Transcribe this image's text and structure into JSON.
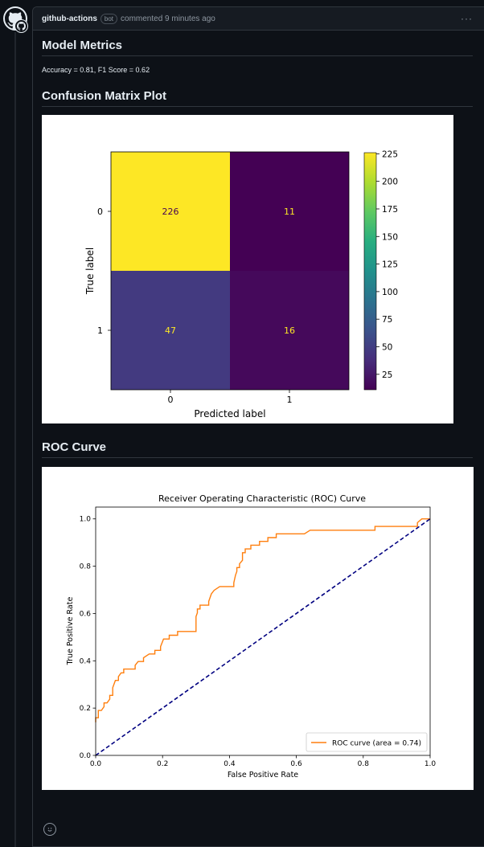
{
  "comment": {
    "author": "github-actions",
    "badge": "bot",
    "action": "commented 9 minutes ago",
    "menu_label": "···"
  },
  "sections": {
    "metrics_title": "Model Metrics",
    "metrics_text": "Accuracy = 0.81, F1 Score = 0.62",
    "cm_title": "Confusion Matrix Plot",
    "roc_title": "ROC Curve"
  },
  "chart_data": [
    {
      "type": "heatmap",
      "title": "",
      "xlabel": "Predicted label",
      "ylabel": "True label",
      "x_categories": [
        "0",
        "1"
      ],
      "y_categories": [
        "0",
        "1"
      ],
      "values": [
        [
          226,
          11
        ],
        [
          47,
          16
        ]
      ],
      "colorbar": {
        "min": 11,
        "max": 226,
        "ticks": [
          25,
          50,
          75,
          100,
          125,
          150,
          175,
          200,
          225
        ]
      },
      "colormap": "viridis"
    },
    {
      "type": "line",
      "title": "Receiver Operating Characteristic (ROC) Curve",
      "xlabel": "False Positive Rate",
      "ylabel": "True Positive Rate",
      "xlim": [
        0,
        1
      ],
      "ylim": [
        0,
        1.05
      ],
      "xticks": [
        0.0,
        0.2,
        0.4,
        0.6,
        0.8,
        1.0
      ],
      "yticks": [
        0.0,
        0.2,
        0.4,
        0.6,
        0.8,
        1.0
      ],
      "legend_position": "lower-right",
      "series": [
        {
          "name": "ROC curve (area = 0.74)",
          "color": "#ff7f0e",
          "style": "solid",
          "x": [
            0.0,
            0.0,
            0.008,
            0.008,
            0.017,
            0.025,
            0.025,
            0.034,
            0.042,
            0.042,
            0.051,
            0.051,
            0.059,
            0.068,
            0.068,
            0.076,
            0.084,
            0.084,
            0.118,
            0.118,
            0.127,
            0.143,
            0.143,
            0.16,
            0.177,
            0.177,
            0.194,
            0.194,
            0.203,
            0.22,
            0.22,
            0.245,
            0.245,
            0.257,
            0.3,
            0.3,
            0.3,
            0.304,
            0.304,
            0.312,
            0.312,
            0.338,
            0.338,
            0.346,
            0.354,
            0.371,
            0.392,
            0.413,
            0.413,
            0.418,
            0.422,
            0.422,
            0.43,
            0.43,
            0.439,
            0.439,
            0.447,
            0.447,
            0.456,
            0.464,
            0.464,
            0.481,
            0.49,
            0.49,
            0.515,
            0.515,
            0.523,
            0.54,
            0.54,
            0.557,
            0.624,
            0.624,
            0.641,
            0.675,
            0.692,
            0.835,
            0.835,
            0.852,
            0.949,
            0.962,
            0.962,
            0.975,
            1.0
          ],
          "y": [
            0.14,
            0.159,
            0.159,
            0.19,
            0.19,
            0.206,
            0.222,
            0.222,
            0.238,
            0.254,
            0.254,
            0.286,
            0.317,
            0.317,
            0.333,
            0.349,
            0.349,
            0.365,
            0.365,
            0.381,
            0.397,
            0.397,
            0.413,
            0.429,
            0.429,
            0.444,
            0.444,
            0.46,
            0.492,
            0.492,
            0.508,
            0.508,
            0.524,
            0.524,
            0.524,
            0.556,
            0.587,
            0.603,
            0.619,
            0.619,
            0.635,
            0.635,
            0.651,
            0.683,
            0.698,
            0.714,
            0.714,
            0.714,
            0.73,
            0.762,
            0.778,
            0.794,
            0.794,
            0.81,
            0.825,
            0.857,
            0.857,
            0.873,
            0.873,
            0.873,
            0.889,
            0.889,
            0.889,
            0.905,
            0.905,
            0.921,
            0.921,
            0.921,
            0.937,
            0.937,
            0.937,
            0.937,
            0.952,
            0.952,
            0.952,
            0.952,
            0.968,
            0.968,
            0.968,
            0.968,
            0.984,
            1.0,
            1.0
          ]
        },
        {
          "name": "",
          "color": "#000080",
          "style": "dashed",
          "x": [
            0,
            1
          ],
          "y": [
            0,
            1
          ]
        }
      ]
    }
  ]
}
